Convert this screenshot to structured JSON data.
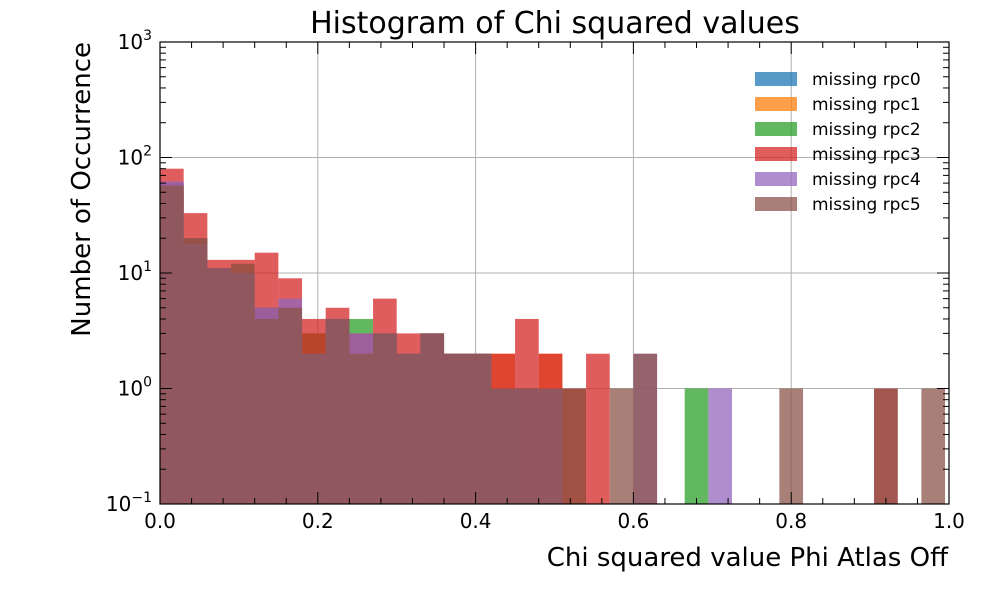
{
  "chart_data": {
    "type": "histogram",
    "title": "Histogram of Chi squared values",
    "xlabel": "Chi squared value Phi Atlas Off",
    "ylabel": "Number of Occurrence",
    "xlim": [
      0.0,
      1.0
    ],
    "ylim": [
      0.1,
      1000
    ],
    "yscale": "log",
    "grid": true,
    "legend_position": "top-right",
    "x_ticks": [
      "0.0",
      "0.2",
      "0.4",
      "0.6",
      "0.8",
      "1.0"
    ],
    "y_ticks": [
      {
        "base": "10",
        "exp": "−1"
      },
      {
        "base": "10",
        "exp": "0"
      },
      {
        "base": "10",
        "exp": "1"
      },
      {
        "base": "10",
        "exp": "2"
      },
      {
        "base": "10",
        "exp": "3"
      }
    ],
    "series": [
      {
        "name": "missing rpc0",
        "color": "#1f77b4",
        "bars": [
          [
            0.0,
            0.03,
            60
          ],
          [
            0.03,
            0.06,
            20
          ],
          [
            0.06,
            0.09,
            11
          ],
          [
            0.09,
            0.12,
            10
          ],
          [
            0.12,
            0.15,
            5
          ],
          [
            0.15,
            0.18,
            5
          ],
          [
            0.18,
            0.21,
            2
          ],
          [
            0.21,
            0.24,
            4
          ],
          [
            0.24,
            0.27,
            2
          ],
          [
            0.27,
            0.3,
            3
          ],
          [
            0.3,
            0.33,
            2
          ],
          [
            0.33,
            0.36,
            3
          ],
          [
            0.36,
            0.39,
            2
          ],
          [
            0.39,
            0.42,
            2
          ],
          [
            0.42,
            0.45,
            1
          ],
          [
            0.45,
            0.48,
            1
          ]
        ]
      },
      {
        "name": "missing rpc1",
        "color": "#ff7f0e",
        "bars": [
          [
            0.0,
            0.03,
            55
          ],
          [
            0.03,
            0.06,
            18
          ],
          [
            0.06,
            0.09,
            10
          ],
          [
            0.09,
            0.12,
            12
          ],
          [
            0.12,
            0.15,
            4
          ],
          [
            0.15,
            0.18,
            4
          ],
          [
            0.18,
            0.21,
            3
          ],
          [
            0.21,
            0.24,
            4
          ],
          [
            0.24,
            0.27,
            2
          ],
          [
            0.27,
            0.3,
            3
          ],
          [
            0.3,
            0.33,
            2
          ],
          [
            0.33,
            0.36,
            3
          ],
          [
            0.36,
            0.39,
            2
          ],
          [
            0.39,
            0.42,
            1
          ],
          [
            0.42,
            0.45,
            2
          ],
          [
            0.45,
            0.48,
            1
          ],
          [
            0.48,
            0.51,
            2
          ],
          [
            0.51,
            0.54,
            1
          ]
        ]
      },
      {
        "name": "missing rpc2",
        "color": "#2ca02c",
        "bars": [
          [
            0.0,
            0.03,
            58
          ],
          [
            0.03,
            0.06,
            19
          ],
          [
            0.06,
            0.09,
            10
          ],
          [
            0.09,
            0.12,
            9
          ],
          [
            0.12,
            0.15,
            5
          ],
          [
            0.15,
            0.18,
            5
          ],
          [
            0.18,
            0.21,
            3
          ],
          [
            0.21,
            0.24,
            4
          ],
          [
            0.24,
            0.27,
            4
          ],
          [
            0.27,
            0.3,
            3
          ],
          [
            0.3,
            0.33,
            2
          ],
          [
            0.33,
            0.36,
            3
          ],
          [
            0.36,
            0.39,
            2
          ],
          [
            0.39,
            0.42,
            2
          ],
          [
            0.42,
            0.45,
            1
          ],
          [
            0.665,
            0.695,
            1
          ]
        ]
      },
      {
        "name": "missing rpc3",
        "color": "#d62728",
        "bars": [
          [
            0.0,
            0.03,
            80
          ],
          [
            0.03,
            0.06,
            33
          ],
          [
            0.06,
            0.09,
            13
          ],
          [
            0.09,
            0.12,
            13
          ],
          [
            0.12,
            0.15,
            15
          ],
          [
            0.15,
            0.18,
            9
          ],
          [
            0.18,
            0.21,
            4
          ],
          [
            0.21,
            0.24,
            5
          ],
          [
            0.24,
            0.27,
            3
          ],
          [
            0.27,
            0.3,
            6
          ],
          [
            0.3,
            0.33,
            3
          ],
          [
            0.33,
            0.36,
            3
          ],
          [
            0.36,
            0.39,
            2
          ],
          [
            0.39,
            0.42,
            2
          ],
          [
            0.42,
            0.45,
            2
          ],
          [
            0.45,
            0.48,
            4
          ],
          [
            0.48,
            0.51,
            2
          ],
          [
            0.51,
            0.54,
            1
          ],
          [
            0.54,
            0.57,
            2
          ],
          [
            0.905,
            0.935,
            1
          ]
        ]
      },
      {
        "name": "missing rpc4",
        "color": "#9467bd",
        "bars": [
          [
            0.0,
            0.03,
            62
          ],
          [
            0.03,
            0.06,
            18
          ],
          [
            0.06,
            0.09,
            11
          ],
          [
            0.09,
            0.12,
            10
          ],
          [
            0.12,
            0.15,
            5
          ],
          [
            0.15,
            0.18,
            6
          ],
          [
            0.18,
            0.21,
            2
          ],
          [
            0.21,
            0.24,
            4
          ],
          [
            0.24,
            0.27,
            3
          ],
          [
            0.27,
            0.3,
            3
          ],
          [
            0.3,
            0.33,
            2
          ],
          [
            0.33,
            0.36,
            3
          ],
          [
            0.36,
            0.39,
            2
          ],
          [
            0.39,
            0.42,
            2
          ],
          [
            0.42,
            0.45,
            1
          ],
          [
            0.45,
            0.48,
            1
          ],
          [
            0.48,
            0.51,
            1
          ],
          [
            0.6,
            0.63,
            2
          ],
          [
            0.695,
            0.725,
            1
          ]
        ]
      },
      {
        "name": "missing rpc5",
        "color": "#8c564b",
        "bars": [
          [
            0.0,
            0.03,
            57
          ],
          [
            0.03,
            0.06,
            20
          ],
          [
            0.06,
            0.09,
            11
          ],
          [
            0.09,
            0.12,
            12
          ],
          [
            0.12,
            0.15,
            4
          ],
          [
            0.15,
            0.18,
            5
          ],
          [
            0.18,
            0.21,
            2
          ],
          [
            0.21,
            0.24,
            4
          ],
          [
            0.24,
            0.27,
            2
          ],
          [
            0.27,
            0.3,
            3
          ],
          [
            0.3,
            0.33,
            2
          ],
          [
            0.33,
            0.36,
            3
          ],
          [
            0.36,
            0.39,
            2
          ],
          [
            0.39,
            0.42,
            2
          ],
          [
            0.42,
            0.45,
            1
          ],
          [
            0.45,
            0.48,
            1
          ],
          [
            0.48,
            0.51,
            1
          ],
          [
            0.51,
            0.54,
            1
          ],
          [
            0.57,
            0.6,
            1
          ],
          [
            0.6,
            0.63,
            2
          ],
          [
            0.785,
            0.815,
            1
          ],
          [
            0.905,
            0.935,
            1
          ],
          [
            0.965,
            0.995,
            1
          ]
        ]
      }
    ]
  }
}
